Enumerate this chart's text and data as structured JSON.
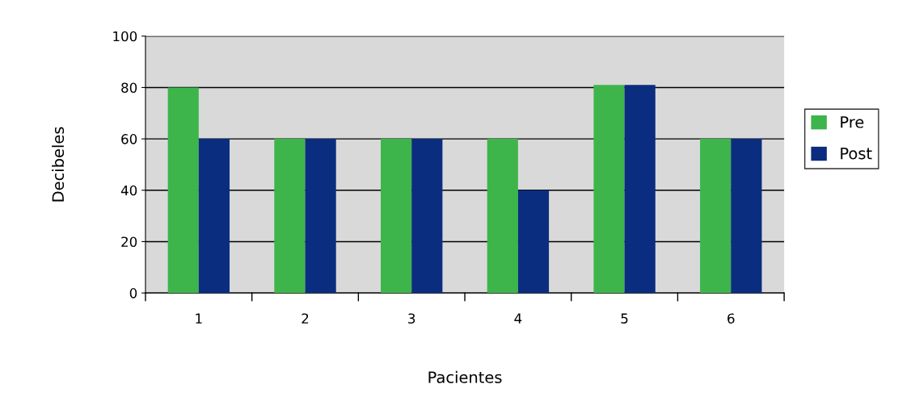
{
  "chart_data": {
    "type": "bar",
    "xlabel": "Pacientes",
    "ylabel": "Decibeles",
    "categories": [
      "1",
      "2",
      "3",
      "4",
      "5",
      "6"
    ],
    "series": [
      {
        "name": "Pre",
        "color": "#3db54a",
        "values": [
          80,
          60,
          60,
          60,
          81,
          60
        ]
      },
      {
        "name": "Post",
        "color": "#0b2d7f",
        "values": [
          60,
          60,
          60,
          40,
          81,
          60
        ]
      }
    ],
    "ylim": [
      0,
      100
    ],
    "yticks": [
      0,
      20,
      40,
      60,
      80,
      100
    ],
    "grid": "y",
    "legend": "right"
  }
}
